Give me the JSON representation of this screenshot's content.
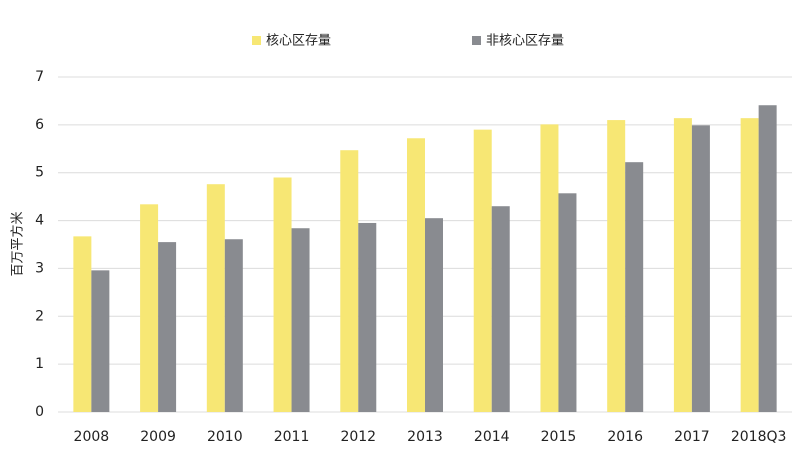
{
  "chart_data": {
    "type": "bar",
    "y_label": "百万平方米",
    "categories": [
      "2008",
      "2009",
      "2010",
      "2011",
      "2012",
      "2013",
      "2014",
      "2015",
      "2016",
      "2017",
      "2018Q3"
    ],
    "series": [
      {
        "name": "核心区存量",
        "color": "#f7e774",
        "values": [
          3.67,
          4.34,
          4.76,
          4.9,
          5.47,
          5.72,
          5.9,
          6.01,
          6.1,
          6.14,
          6.14
        ]
      },
      {
        "name": "非核心区存量",
        "color": "#898b90",
        "values": [
          2.96,
          3.55,
          3.61,
          3.84,
          3.95,
          4.05,
          4.3,
          4.57,
          5.22,
          5.99,
          6.41
        ]
      }
    ],
    "ylim": [
      0,
      7
    ],
    "yticks": [
      0,
      1,
      2,
      3,
      4,
      5,
      6,
      7
    ],
    "grid": true
  }
}
